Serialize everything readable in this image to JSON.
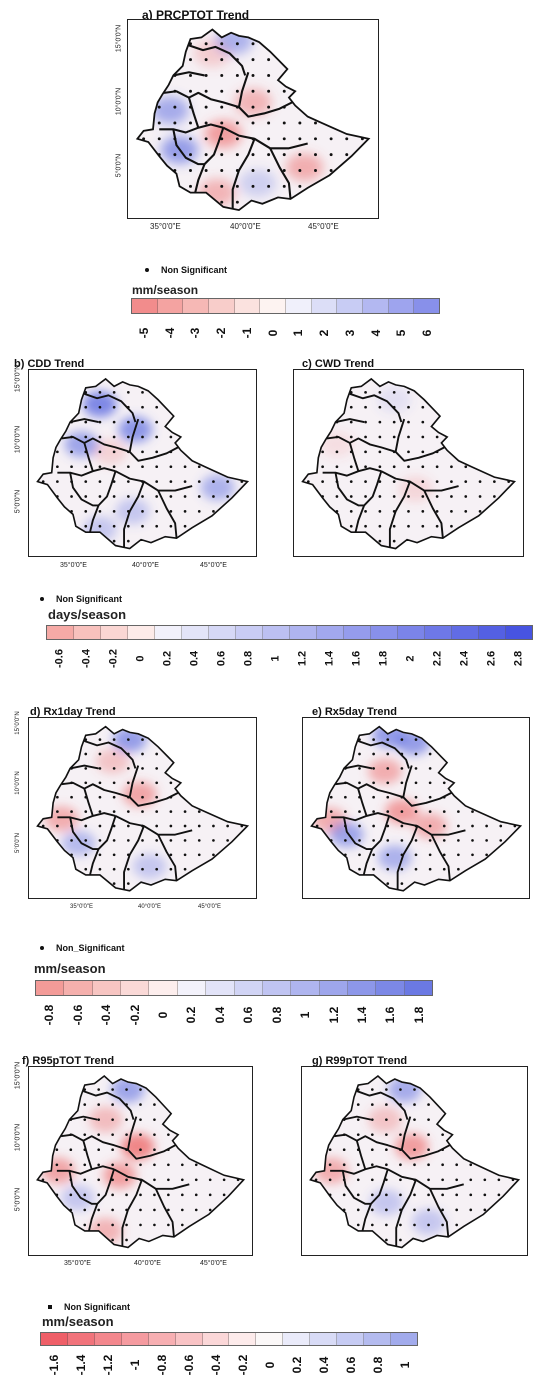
{
  "panels": [
    {
      "id": "a",
      "title": "a) PRCPTOT Trend",
      "lat_ticks": [
        "15°0'0\"N",
        "10°0'0\"N",
        "5°0'0\"N"
      ],
      "lon_ticks": [
        "35°0'0\"E",
        "40°0'0\"E",
        "45°0'0\"E"
      ],
      "blobs": [
        {
          "c": "red",
          "lat": 8.3,
          "lon": 38.6,
          "i": 0.55
        },
        {
          "c": "red",
          "lat": 6.2,
          "lon": 43.8,
          "i": 0.45
        },
        {
          "c": "red",
          "lat": 10.3,
          "lon": 40.5,
          "i": 0.4
        },
        {
          "c": "red",
          "lat": 4.6,
          "lon": 38.2,
          "i": 0.4
        },
        {
          "c": "red",
          "lat": 13.4,
          "lon": 37.9,
          "i": 0.25
        },
        {
          "c": "blue",
          "lat": 9.8,
          "lon": 35.2,
          "i": 0.5
        },
        {
          "c": "blue",
          "lat": 7.3,
          "lon": 35.8,
          "i": 0.6
        },
        {
          "c": "blue",
          "lat": 14.2,
          "lon": 39.3,
          "i": 0.45
        },
        {
          "c": "blue",
          "lat": 5.2,
          "lon": 40.8,
          "i": 0.25
        }
      ]
    },
    {
      "id": "b",
      "title": "b) CDD Trend",
      "lat_ticks": [
        "15°0'0\"N",
        "10°0'0\"N",
        "5°0'0\"N"
      ],
      "lon_ticks": [
        "35°0'0\"E",
        "40°0'0\"E",
        "45°0'0\"E"
      ],
      "blobs": [
        {
          "c": "blue",
          "lat": 13.2,
          "lon": 37.5,
          "i": 0.75
        },
        {
          "c": "blue",
          "lat": 11.5,
          "lon": 40.0,
          "i": 0.65
        },
        {
          "c": "blue",
          "lat": 10.5,
          "lon": 36.2,
          "i": 0.55
        },
        {
          "c": "blue",
          "lat": 7.6,
          "lon": 45.8,
          "i": 0.45
        },
        {
          "c": "blue",
          "lat": 6.0,
          "lon": 39.8,
          "i": 0.3
        },
        {
          "c": "blue",
          "lat": 4.8,
          "lon": 37.5,
          "i": 0.3
        },
        {
          "c": "red",
          "lat": 10.0,
          "lon": 38.2,
          "i": 0.2
        }
      ]
    },
    {
      "id": "c",
      "title": "c) CWD Trend",
      "lat_ticks": [],
      "lon_ticks": [],
      "blobs": [
        {
          "c": "red",
          "lat": 7.5,
          "lon": 41.0,
          "i": 0.18
        },
        {
          "c": "red",
          "lat": 10.5,
          "lon": 35.5,
          "i": 0.12
        },
        {
          "c": "blue",
          "lat": 13.5,
          "lon": 39.5,
          "i": 0.12
        }
      ]
    },
    {
      "id": "d",
      "title": "d) Rx1day Trend",
      "lat_ticks": [
        "15°0'0\"N",
        "10°0'0\"N",
        "5°0'0\"N"
      ],
      "lon_ticks": [
        "35°0'0\"E",
        "40°0'0\"E",
        "45°0'0\"E"
      ],
      "blobs": [
        {
          "c": "red",
          "lat": 10.2,
          "lon": 40.3,
          "i": 0.5
        },
        {
          "c": "red",
          "lat": 8.5,
          "lon": 34.8,
          "i": 0.45
        },
        {
          "c": "red",
          "lat": 12.5,
          "lon": 38.4,
          "i": 0.3
        },
        {
          "c": "blue",
          "lat": 14.0,
          "lon": 39.6,
          "i": 0.6
        },
        {
          "c": "blue",
          "lat": 6.8,
          "lon": 36.0,
          "i": 0.4
        },
        {
          "c": "blue",
          "lat": 5.2,
          "lon": 41.0,
          "i": 0.3
        }
      ]
    },
    {
      "id": "e",
      "title": "e) Rx5day Trend",
      "lat_ticks": [],
      "lon_ticks": [],
      "blobs": [
        {
          "c": "red",
          "lat": 9.0,
          "lon": 39.5,
          "i": 0.55
        },
        {
          "c": "red",
          "lat": 11.8,
          "lon": 38.3,
          "i": 0.45
        },
        {
          "c": "red",
          "lat": 8.0,
          "lon": 41.5,
          "i": 0.45
        },
        {
          "c": "red",
          "lat": 8.4,
          "lon": 34.4,
          "i": 0.45
        },
        {
          "c": "blue",
          "lat": 14.3,
          "lon": 38.6,
          "i": 0.6
        },
        {
          "c": "blue",
          "lat": 13.8,
          "lon": 40.3,
          "i": 0.6
        },
        {
          "c": "blue",
          "lat": 7.4,
          "lon": 35.6,
          "i": 0.55
        },
        {
          "c": "blue",
          "lat": 5.8,
          "lon": 39.0,
          "i": 0.45
        }
      ]
    },
    {
      "id": "f",
      "title": "f) R95pTOT Trend",
      "lat_ticks": [
        "15°0'0\"N",
        "10°0'0\"N",
        "5°0'0\"N"
      ],
      "lon_ticks": [
        "35°0'0\"E",
        "40°0'0\"E",
        "45°0'0\"E"
      ],
      "blobs": [
        {
          "c": "red",
          "lat": 10.2,
          "lon": 40.3,
          "i": 0.7
        },
        {
          "c": "red",
          "lat": 8.3,
          "lon": 39.0,
          "i": 0.55
        },
        {
          "c": "red",
          "lat": 8.6,
          "lon": 34.6,
          "i": 0.5
        },
        {
          "c": "red",
          "lat": 12.0,
          "lon": 38.0,
          "i": 0.35
        },
        {
          "c": "red",
          "lat": 4.6,
          "lon": 38.0,
          "i": 0.4
        },
        {
          "c": "blue",
          "lat": 14.0,
          "lon": 39.6,
          "i": 0.55
        },
        {
          "c": "blue",
          "lat": 6.8,
          "lon": 36.0,
          "i": 0.3
        }
      ]
    },
    {
      "id": "g",
      "title": "g) R99pTOT Trend",
      "lat_ticks": [],
      "lon_ticks": [],
      "blobs": [
        {
          "c": "red",
          "lat": 10.2,
          "lon": 40.3,
          "i": 0.55
        },
        {
          "c": "red",
          "lat": 8.6,
          "lon": 34.6,
          "i": 0.45
        },
        {
          "c": "red",
          "lat": 12.0,
          "lon": 38.4,
          "i": 0.3
        },
        {
          "c": "blue",
          "lat": 14.0,
          "lon": 39.8,
          "i": 0.5
        },
        {
          "c": "blue",
          "lat": 6.5,
          "lon": 38.5,
          "i": 0.3
        },
        {
          "c": "blue",
          "lat": 5.2,
          "lon": 41.5,
          "i": 0.3
        }
      ]
    }
  ],
  "legends": [
    {
      "id": "leg-a",
      "ns_label": "Non Significant",
      "unit": "mm/season",
      "labels": [
        "-5",
        "-4",
        "-3",
        "-2",
        "-1",
        "0",
        "1",
        "2",
        "3",
        "4",
        "5",
        "6"
      ],
      "colors": [
        "#f28c8c",
        "#f4a3a1",
        "#f6b8b5",
        "#f8cdca",
        "#fbe2df",
        "#fdf3f1",
        "#f0f0fb",
        "#dcdef7",
        "#c8ccf4",
        "#b3b8f1",
        "#9ea4ee",
        "#8890ea"
      ]
    },
    {
      "id": "leg-b",
      "ns_label": "Non Significant",
      "unit": "days/season",
      "labels": [
        "-0.6",
        "-0.4",
        "-0.2",
        "0",
        "0.2",
        "0.4",
        "0.6",
        "0.8",
        "1",
        "1.2",
        "1.4",
        "1.6",
        "1.8",
        "2",
        "2.2",
        "2.4",
        "2.6",
        "2.8"
      ],
      "colors": [
        "#f6aaa6",
        "#f8c1bd",
        "#fad6d3",
        "#fdebe9",
        "#f2f1fb",
        "#e3e4f8",
        "#d6d8f6",
        "#c9ccf4",
        "#bcc0f2",
        "#afb4f0",
        "#a2a8ee",
        "#959ced",
        "#8890eb",
        "#7b84e9",
        "#6e78e7",
        "#616ce5",
        "#5460e3",
        "#4754e1"
      ]
    },
    {
      "id": "leg-d",
      "ns_label": "Non_Significant",
      "unit": "mm/season",
      "labels": [
        "-0.8",
        "-0.6",
        "-0.4",
        "-0.2",
        "0",
        "0.2",
        "0.4",
        "0.6",
        "0.8",
        "1",
        "1.2",
        "1.4",
        "1.6",
        "1.8"
      ],
      "colors": [
        "#f39b98",
        "#f5b0ad",
        "#f7c5c2",
        "#fad9d7",
        "#fdeeed",
        "#f3f2fb",
        "#e2e3f8",
        "#d1d4f5",
        "#c0c4f2",
        "#afb5ef",
        "#9ea6ec",
        "#8d97e9",
        "#7c88e6",
        "#6b79e3"
      ]
    },
    {
      "id": "leg-f",
      "ns_label": "Non Significant",
      "unit": "mm/season",
      "labels": [
        "-1.6",
        "-1.4",
        "-1.2",
        "-1",
        "-0.8",
        "-0.6",
        "-0.4",
        "-0.2",
        "0",
        "0.2",
        "0.4",
        "0.6",
        "0.8",
        "1"
      ],
      "colors": [
        "#ef5f68",
        "#f1737b",
        "#f3878d",
        "#f59ba0",
        "#f7afb2",
        "#f9c3c5",
        "#fbd7d8",
        "#fdebeb",
        "#fbf8f8",
        "#eaebfa",
        "#d8dbf6",
        "#c6cbf3",
        "#b4bbef",
        "#a2abec"
      ]
    }
  ]
}
